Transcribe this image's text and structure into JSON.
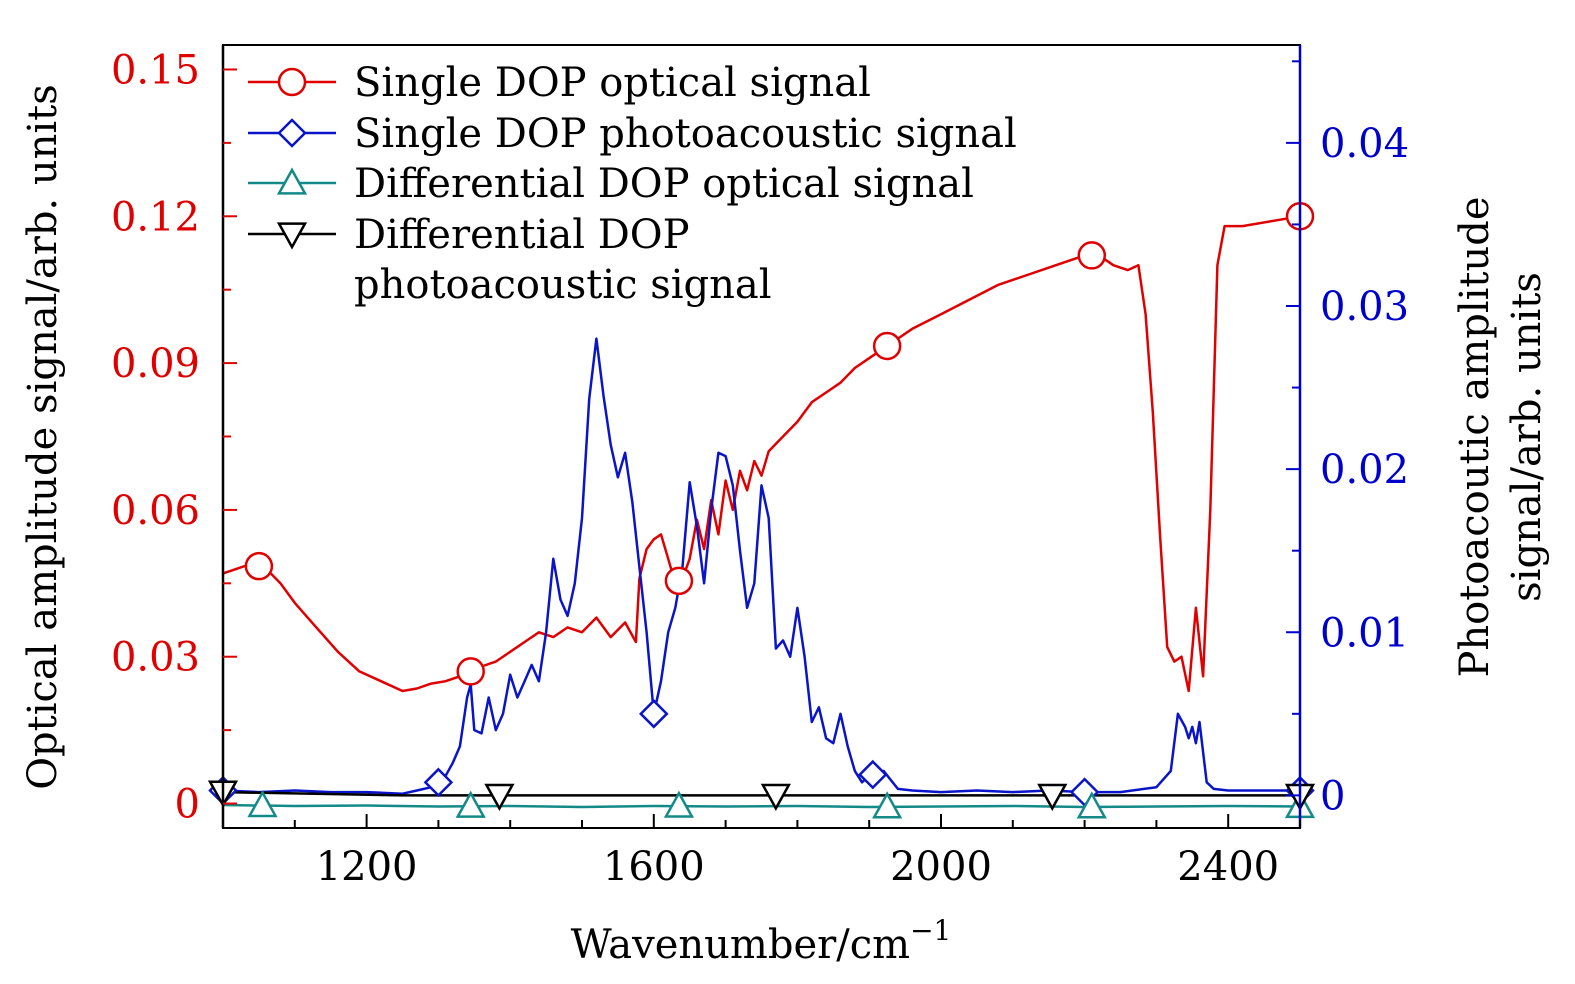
{
  "chart_data": {
    "type": "line",
    "xlabel": "Wavenumber/cm",
    "xlabel_sup": "−1",
    "ylabel_left": "Optical amplitude signal/arb. units",
    "ylabel_right_line1": "Photoacoutic amplitude",
    "ylabel_right_line2": "signal/arb. units",
    "xlim": [
      1000,
      2500
    ],
    "ylim_left": [
      -0.005,
      0.155
    ],
    "ylim_right": [
      -0.002,
      0.046
    ],
    "x_ticks": [
      1200,
      1600,
      2000,
      2400
    ],
    "x_tick_labels": [
      "1200",
      "1600",
      "2000",
      "2400"
    ],
    "y_left_ticks": [
      0,
      0.03,
      0.06,
      0.09,
      0.12,
      0.15
    ],
    "y_left_tick_labels": [
      "0",
      "0.03",
      "0.06",
      "0.09",
      "0.12",
      "0.15"
    ],
    "y_right_ticks": [
      0,
      0.01,
      0.02,
      0.03,
      0.04
    ],
    "y_right_tick_labels": [
      "0",
      "0.01",
      "0.02",
      "0.03",
      "0.04"
    ],
    "colors": {
      "left_axis": "#e00000",
      "right_axis": "#0000cc",
      "single_optical": "#e00000",
      "single_pa": "#0a14c8",
      "diff_optical": "#138a88",
      "diff_pa": "#000000"
    },
    "legend": {
      "position": "top-left",
      "entries": [
        {
          "label": "Single DOP optical signal",
          "marker": "circle",
          "color": "#e00000"
        },
        {
          "label": "Single DOP photoacoustic signal",
          "marker": "diamond",
          "color": "#0a14c8"
        },
        {
          "label": "Differential DOP optical signal",
          "marker": "triangle-up",
          "color": "#138a88"
        },
        {
          "label": "Differential DOP",
          "label_line2": "photoacoustic signal",
          "marker": "triangle-down",
          "color": "#000000"
        }
      ]
    },
    "series": [
      {
        "name": "Single DOP optical signal",
        "axis": "left",
        "x": [
          1000,
          1020,
          1040,
          1060,
          1080,
          1100,
          1130,
          1160,
          1190,
          1220,
          1250,
          1270,
          1290,
          1310,
          1330,
          1345,
          1360,
          1380,
          1400,
          1420,
          1440,
          1460,
          1480,
          1500,
          1520,
          1540,
          1560,
          1575,
          1580,
          1590,
          1600,
          1610,
          1620,
          1630,
          1640,
          1650,
          1660,
          1670,
          1680,
          1690,
          1700,
          1710,
          1720,
          1730,
          1740,
          1750,
          1760,
          1780,
          1800,
          1820,
          1840,
          1860,
          1880,
          1900,
          1920,
          1940,
          1960,
          2000,
          2040,
          2080,
          2120,
          2160,
          2200,
          2220,
          2240,
          2260,
          2275,
          2285,
          2295,
          2305,
          2315,
          2325,
          2335,
          2345,
          2355,
          2365,
          2375,
          2385,
          2395,
          2420,
          2460,
          2500
        ],
        "values": [
          0.047,
          0.048,
          0.049,
          0.048,
          0.045,
          0.041,
          0.036,
          0.031,
          0.027,
          0.025,
          0.023,
          0.0235,
          0.0245,
          0.025,
          0.026,
          0.027,
          0.028,
          0.029,
          0.031,
          0.033,
          0.035,
          0.034,
          0.036,
          0.035,
          0.038,
          0.034,
          0.037,
          0.033,
          0.046,
          0.052,
          0.054,
          0.055,
          0.05,
          0.045,
          0.046,
          0.05,
          0.058,
          0.052,
          0.062,
          0.055,
          0.066,
          0.06,
          0.068,
          0.064,
          0.07,
          0.067,
          0.072,
          0.075,
          0.078,
          0.082,
          0.084,
          0.086,
          0.089,
          0.091,
          0.093,
          0.095,
          0.097,
          0.1,
          0.103,
          0.106,
          0.108,
          0.11,
          0.112,
          0.112,
          0.11,
          0.109,
          0.11,
          0.1,
          0.08,
          0.055,
          0.032,
          0.029,
          0.03,
          0.023,
          0.04,
          0.026,
          0.06,
          0.11,
          0.118,
          0.118,
          0.119,
          0.12
        ],
        "marker_x": [
          1050,
          1345,
          1635,
          1925,
          2210,
          2500
        ]
      },
      {
        "name": "Single DOP photoacoustic signal",
        "axis": "right",
        "x": [
          1000,
          1050,
          1100,
          1150,
          1200,
          1250,
          1270,
          1290,
          1300,
          1310,
          1320,
          1330,
          1340,
          1345,
          1350,
          1360,
          1370,
          1380,
          1390,
          1400,
          1410,
          1420,
          1430,
          1440,
          1450,
          1460,
          1470,
          1480,
          1490,
          1500,
          1510,
          1520,
          1530,
          1540,
          1550,
          1560,
          1570,
          1580,
          1590,
          1600,
          1610,
          1620,
          1630,
          1640,
          1650,
          1660,
          1670,
          1680,
          1690,
          1700,
          1710,
          1720,
          1730,
          1740,
          1750,
          1760,
          1770,
          1780,
          1790,
          1800,
          1810,
          1820,
          1830,
          1840,
          1850,
          1860,
          1870,
          1880,
          1890,
          1900,
          1920,
          1940,
          1960,
          2000,
          2050,
          2100,
          2150,
          2200,
          2250,
          2300,
          2320,
          2330,
          2340,
          2345,
          2350,
          2355,
          2360,
          2370,
          2380,
          2400,
          2450,
          2500
        ],
        "values": [
          0.0003,
          0.0002,
          0.0003,
          0.0002,
          0.0002,
          0.0001,
          0.0003,
          0.0005,
          0.0008,
          0.0012,
          0.002,
          0.003,
          0.006,
          0.0068,
          0.004,
          0.0038,
          0.006,
          0.004,
          0.005,
          0.0074,
          0.006,
          0.007,
          0.008,
          0.007,
          0.01,
          0.0145,
          0.012,
          0.011,
          0.013,
          0.017,
          0.0243,
          0.028,
          0.0245,
          0.0215,
          0.0195,
          0.021,
          0.018,
          0.014,
          0.01,
          0.005,
          0.007,
          0.01,
          0.0115,
          0.014,
          0.0192,
          0.0165,
          0.013,
          0.0175,
          0.021,
          0.0208,
          0.019,
          0.015,
          0.0115,
          0.013,
          0.019,
          0.017,
          0.009,
          0.0095,
          0.0085,
          0.0115,
          0.0085,
          0.0045,
          0.0054,
          0.0035,
          0.0032,
          0.005,
          0.003,
          0.0015,
          0.0008,
          0.0012,
          0.0015,
          0.0004,
          0.0003,
          0.0002,
          0.0003,
          0.0002,
          0.0003,
          0.0002,
          0.0002,
          0.0005,
          0.0015,
          0.005,
          0.0042,
          0.0035,
          0.0042,
          0.0032,
          0.0045,
          0.0008,
          0.0004,
          0.0003,
          0.0003,
          0.0003
        ],
        "marker_x": [
          1000,
          1300,
          1600,
          1905,
          2200,
          2500
        ]
      },
      {
        "name": "Differential DOP optical signal",
        "axis": "left",
        "x": [
          1000,
          1100,
          1200,
          1300,
          1400,
          1500,
          1600,
          1700,
          1800,
          1900,
          2000,
          2100,
          2200,
          2300,
          2400,
          2500
        ],
        "values": [
          -0.0003,
          -0.0005,
          -0.0004,
          -0.0006,
          -0.0005,
          -0.0007,
          -0.0005,
          -0.0006,
          -0.0005,
          -0.0007,
          -0.0006,
          -0.0005,
          -0.0007,
          -0.0006,
          -0.0005,
          -0.0006
        ],
        "marker_x": [
          1055,
          1345,
          1635,
          1925,
          2210,
          2500
        ]
      },
      {
        "name": "Differential DOP photoacoustic signal",
        "axis": "right",
        "x": [
          1000,
          1250,
          1500,
          1750,
          2000,
          2250,
          2500
        ],
        "values": [
          0.0002,
          0.0,
          0.0,
          0.0,
          0.0,
          0.0,
          0.0
        ],
        "marker_x": [
          1000,
          1385,
          1770,
          2155,
          2500
        ]
      }
    ]
  }
}
